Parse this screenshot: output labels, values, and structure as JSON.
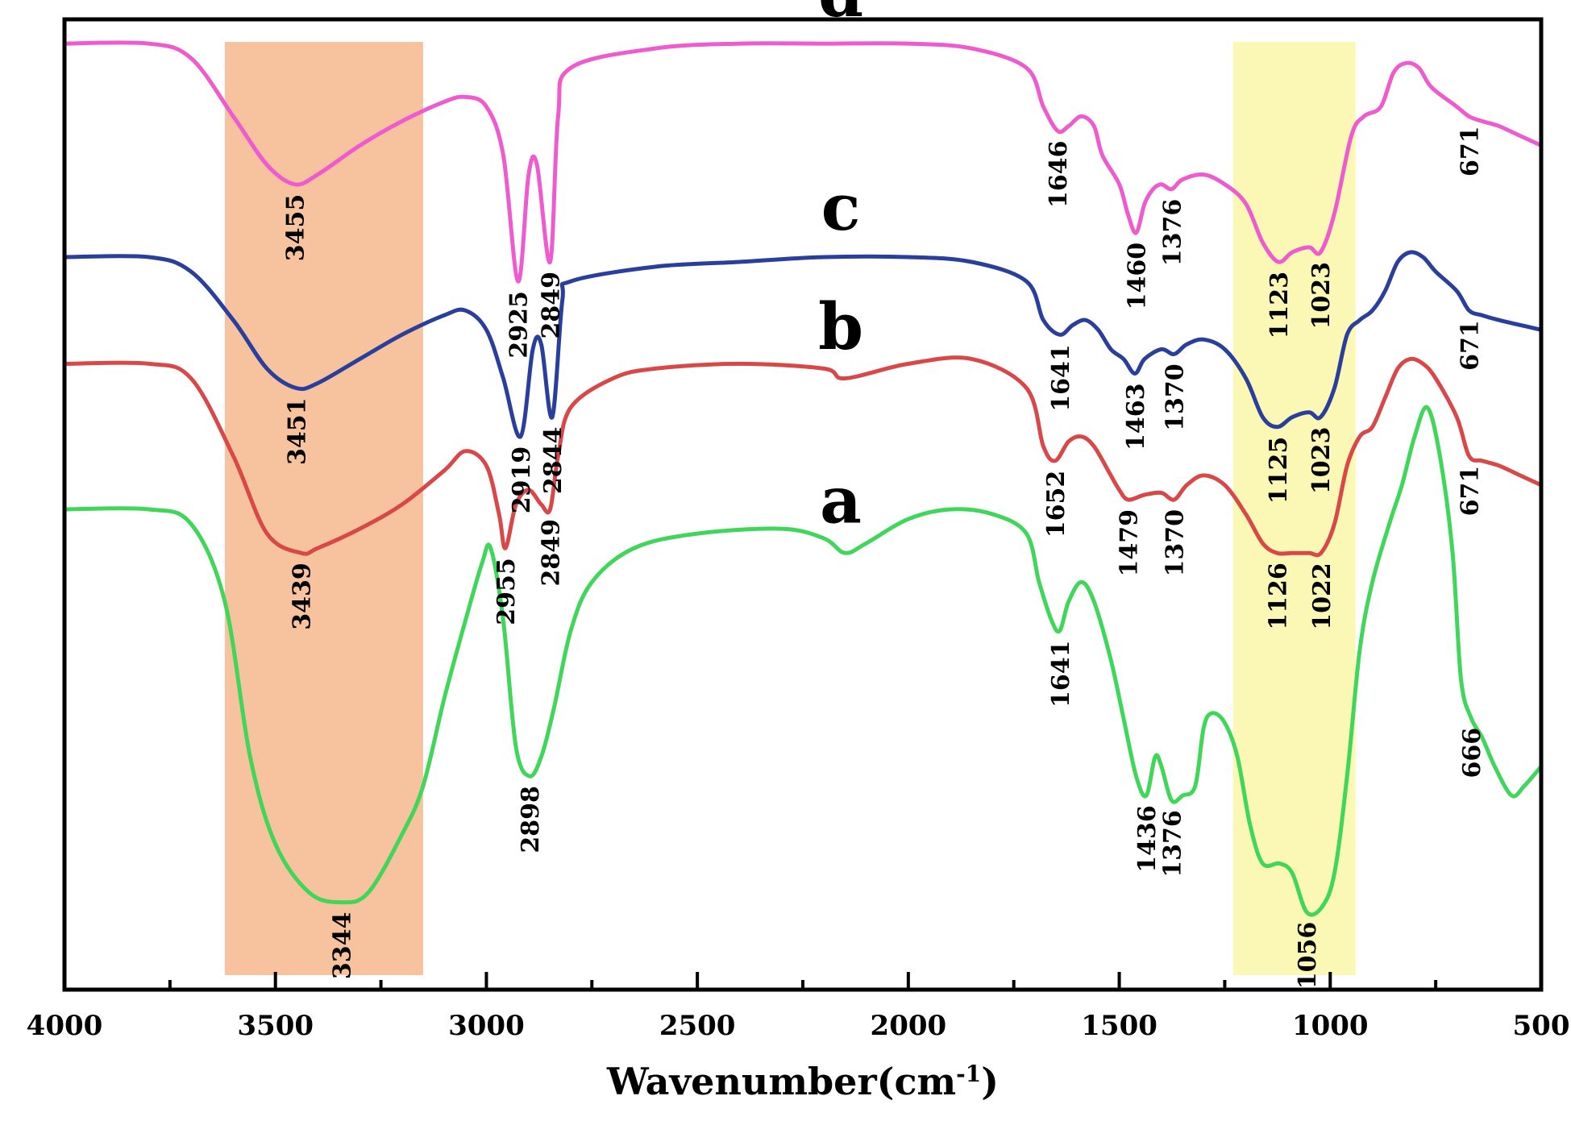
{
  "chart_data": {
    "type": "line",
    "title": "",
    "xlabel": "Wavenumber(cm-1)",
    "xlabel_main": "Wavenumber(cm",
    "xlabel_sup": "-1",
    "xlabel_close": ")",
    "ylabel": "",
    "xlim": [
      4000,
      500
    ],
    "ylim": [
      0,
      100
    ],
    "x_ticks": [
      {
        "value": 4000,
        "label": "4000"
      },
      {
        "value": 3500,
        "label": "3500"
      },
      {
        "value": 3000,
        "label": "3000"
      },
      {
        "value": 2500,
        "label": "2500"
      },
      {
        "value": 2000,
        "label": "2000"
      },
      {
        "value": 1500,
        "label": "1500"
      },
      {
        "value": 1000,
        "label": "1000"
      },
      {
        "value": 500,
        "label": "500"
      }
    ],
    "highlight_bands": [
      {
        "from": 3620,
        "to": 3150,
        "color": "#f7c29e"
      },
      {
        "from": 1230,
        "to": 940,
        "color": "#fbf7b4"
      }
    ],
    "series": [
      {
        "name": "d",
        "label": "d",
        "color": "#ee5bcf",
        "points": [
          [
            4000,
            97.5
          ],
          [
            3800,
            97.5
          ],
          [
            3700,
            96
          ],
          [
            3600,
            90
          ],
          [
            3520,
            85
          ],
          [
            3455,
            83
          ],
          [
            3400,
            84
          ],
          [
            3300,
            87
          ],
          [
            3200,
            89.5
          ],
          [
            3100,
            91.5
          ],
          [
            3050,
            92
          ],
          [
            3000,
            91
          ],
          [
            2960,
            86
          ],
          [
            2925,
            73
          ],
          [
            2900,
            84
          ],
          [
            2880,
            85
          ],
          [
            2849,
            75
          ],
          [
            2830,
            90
          ],
          [
            2800,
            95
          ],
          [
            2600,
            97
          ],
          [
            2400,
            97.5
          ],
          [
            2200,
            97.5
          ],
          [
            2000,
            97.5
          ],
          [
            1850,
            97
          ],
          [
            1720,
            95
          ],
          [
            1680,
            91
          ],
          [
            1646,
            88.5
          ],
          [
            1620,
            89
          ],
          [
            1590,
            90
          ],
          [
            1560,
            89
          ],
          [
            1540,
            86
          ],
          [
            1500,
            83
          ],
          [
            1480,
            80
          ],
          [
            1460,
            78
          ],
          [
            1440,
            81
          ],
          [
            1420,
            82.5
          ],
          [
            1400,
            83
          ],
          [
            1376,
            82.5
          ],
          [
            1350,
            83.5
          ],
          [
            1300,
            84
          ],
          [
            1250,
            83
          ],
          [
            1200,
            81
          ],
          [
            1160,
            77
          ],
          [
            1123,
            75
          ],
          [
            1090,
            76
          ],
          [
            1050,
            76.5
          ],
          [
            1023,
            76
          ],
          [
            990,
            80
          ],
          [
            950,
            88
          ],
          [
            920,
            90
          ],
          [
            880,
            91
          ],
          [
            850,
            94.5
          ],
          [
            820,
            95.5
          ],
          [
            790,
            95
          ],
          [
            760,
            93
          ],
          [
            700,
            91
          ],
          [
            671,
            90
          ],
          [
            640,
            89.5
          ],
          [
            600,
            89
          ],
          [
            550,
            88
          ],
          [
            500,
            87
          ]
        ],
        "peaks": [
          {
            "x": 3455,
            "label": "3455"
          },
          {
            "x": 2925,
            "label": "2925"
          },
          {
            "x": 2849,
            "label": "2849"
          },
          {
            "x": 1646,
            "label": "1646"
          },
          {
            "x": 1460,
            "label": "1460"
          },
          {
            "x": 1376,
            "label": "1376"
          },
          {
            "x": 1123,
            "label": "1123"
          },
          {
            "x": 1023,
            "label": "1023"
          },
          {
            "x": 671,
            "label": "671"
          }
        ]
      },
      {
        "name": "c",
        "label": "c",
        "color": "#2a3f9c",
        "points": [
          [
            4000,
            75.5
          ],
          [
            3800,
            75.5
          ],
          [
            3700,
            74
          ],
          [
            3600,
            69
          ],
          [
            3520,
            64
          ],
          [
            3451,
            62
          ],
          [
            3400,
            62.5
          ],
          [
            3300,
            65
          ],
          [
            3200,
            67.5
          ],
          [
            3100,
            69.5
          ],
          [
            3050,
            70
          ],
          [
            3000,
            68
          ],
          [
            2960,
            63
          ],
          [
            2919,
            57
          ],
          [
            2890,
            66
          ],
          [
            2870,
            66.5
          ],
          [
            2844,
            59
          ],
          [
            2820,
            71
          ],
          [
            2800,
            73
          ],
          [
            2600,
            74.5
          ],
          [
            2400,
            75
          ],
          [
            2200,
            75.5
          ],
          [
            2000,
            75.5
          ],
          [
            1850,
            75
          ],
          [
            1720,
            73
          ],
          [
            1680,
            69
          ],
          [
            1641,
            67.5
          ],
          [
            1610,
            68.5
          ],
          [
            1580,
            69
          ],
          [
            1550,
            68
          ],
          [
            1520,
            66
          ],
          [
            1490,
            65
          ],
          [
            1463,
            63.5
          ],
          [
            1440,
            65
          ],
          [
            1400,
            66
          ],
          [
            1370,
            65.5
          ],
          [
            1340,
            66.5
          ],
          [
            1300,
            67
          ],
          [
            1250,
            66
          ],
          [
            1200,
            63
          ],
          [
            1160,
            59
          ],
          [
            1125,
            58
          ],
          [
            1090,
            59
          ],
          [
            1050,
            59.5
          ],
          [
            1023,
            59
          ],
          [
            990,
            62
          ],
          [
            960,
            67.5
          ],
          [
            930,
            69
          ],
          [
            900,
            70
          ],
          [
            870,
            72
          ],
          [
            840,
            75
          ],
          [
            810,
            76
          ],
          [
            780,
            75.5
          ],
          [
            750,
            74
          ],
          [
            700,
            72
          ],
          [
            671,
            70
          ],
          [
            640,
            69.5
          ],
          [
            600,
            69
          ],
          [
            550,
            68.5
          ],
          [
            500,
            68
          ]
        ],
        "peaks": [
          {
            "x": 3451,
            "label": "3451"
          },
          {
            "x": 2919,
            "label": "2919"
          },
          {
            "x": 2844,
            "label": "2844"
          },
          {
            "x": 1641,
            "label": "1641"
          },
          {
            "x": 1463,
            "label": "1463"
          },
          {
            "x": 1370,
            "label": "1370"
          },
          {
            "x": 1125,
            "label": "1125"
          },
          {
            "x": 1023,
            "label": "1023"
          },
          {
            "x": 671,
            "label": "671"
          }
        ]
      },
      {
        "name": "b",
        "label": "b",
        "color": "#d84848",
        "points": [
          [
            4000,
            64.5
          ],
          [
            3800,
            64.5
          ],
          [
            3700,
            63
          ],
          [
            3600,
            55
          ],
          [
            3520,
            47
          ],
          [
            3439,
            45
          ],
          [
            3400,
            45.5
          ],
          [
            3300,
            47.5
          ],
          [
            3200,
            50
          ],
          [
            3100,
            53.5
          ],
          [
            3050,
            55.5
          ],
          [
            3000,
            54
          ],
          [
            2970,
            49
          ],
          [
            2955,
            45.5
          ],
          [
            2930,
            50
          ],
          [
            2900,
            51.5
          ],
          [
            2870,
            50
          ],
          [
            2849,
            49.5
          ],
          [
            2830,
            55
          ],
          [
            2800,
            60
          ],
          [
            2700,
            63
          ],
          [
            2600,
            64
          ],
          [
            2400,
            64.5
          ],
          [
            2200,
            64
          ],
          [
            2150,
            63
          ],
          [
            2000,
            64.5
          ],
          [
            1850,
            65
          ],
          [
            1720,
            62
          ],
          [
            1680,
            56
          ],
          [
            1652,
            54.5
          ],
          [
            1620,
            56.5
          ],
          [
            1590,
            57
          ],
          [
            1560,
            56
          ],
          [
            1520,
            53
          ],
          [
            1500,
            51.5
          ],
          [
            1479,
            50.5
          ],
          [
            1440,
            51
          ],
          [
            1400,
            51.2
          ],
          [
            1370,
            50.5
          ],
          [
            1340,
            52
          ],
          [
            1300,
            53
          ],
          [
            1250,
            52
          ],
          [
            1200,
            49
          ],
          [
            1160,
            46
          ],
          [
            1126,
            45
          ],
          [
            1090,
            45
          ],
          [
            1050,
            45
          ],
          [
            1022,
            45
          ],
          [
            990,
            48
          ],
          [
            960,
            54
          ],
          [
            930,
            57
          ],
          [
            900,
            58
          ],
          [
            870,
            61
          ],
          [
            840,
            64
          ],
          [
            810,
            65
          ],
          [
            780,
            64.5
          ],
          [
            750,
            63
          ],
          [
            700,
            59
          ],
          [
            671,
            55
          ],
          [
            640,
            54.5
          ],
          [
            600,
            54
          ],
          [
            550,
            53
          ],
          [
            500,
            52
          ]
        ],
        "peaks": [
          {
            "x": 3439,
            "label": "3439"
          },
          {
            "x": 2955,
            "label": "2955"
          },
          {
            "x": 2849,
            "label": "2849"
          },
          {
            "x": 1652,
            "label": "1652"
          },
          {
            "x": 1479,
            "label": "1479"
          },
          {
            "x": 1370,
            "label": "1370"
          },
          {
            "x": 1126,
            "label": "1126"
          },
          {
            "x": 1022,
            "label": "1022"
          },
          {
            "x": 671,
            "label": "671"
          }
        ]
      },
      {
        "name": "a",
        "label": "a",
        "color": "#3fd65a",
        "points": [
          [
            4000,
            49.5
          ],
          [
            3800,
            49.5
          ],
          [
            3700,
            48
          ],
          [
            3620,
            40
          ],
          [
            3560,
            24
          ],
          [
            3500,
            15
          ],
          [
            3420,
            10
          ],
          [
            3344,
            9
          ],
          [
            3280,
            10
          ],
          [
            3200,
            16
          ],
          [
            3150,
            21
          ],
          [
            3100,
            30
          ],
          [
            3050,
            38
          ],
          [
            3010,
            44
          ],
          [
            2990,
            45.5
          ],
          [
            2960,
            38
          ],
          [
            2930,
            25
          ],
          [
            2898,
            22
          ],
          [
            2870,
            24
          ],
          [
            2840,
            29
          ],
          [
            2800,
            37
          ],
          [
            2750,
            42
          ],
          [
            2650,
            45.5
          ],
          [
            2500,
            47
          ],
          [
            2300,
            47.5
          ],
          [
            2200,
            46.5
          ],
          [
            2150,
            45
          ],
          [
            2100,
            46
          ],
          [
            2000,
            48.5
          ],
          [
            1900,
            49.5
          ],
          [
            1800,
            49
          ],
          [
            1720,
            47
          ],
          [
            1690,
            42
          ],
          [
            1660,
            38
          ],
          [
            1641,
            37
          ],
          [
            1620,
            40
          ],
          [
            1590,
            42
          ],
          [
            1560,
            40
          ],
          [
            1520,
            34
          ],
          [
            1490,
            28
          ],
          [
            1460,
            22
          ],
          [
            1436,
            20
          ],
          [
            1415,
            24
          ],
          [
            1400,
            23
          ],
          [
            1376,
            19.5
          ],
          [
            1350,
            20
          ],
          [
            1320,
            21
          ],
          [
            1300,
            27
          ],
          [
            1280,
            28.5
          ],
          [
            1250,
            27.5
          ],
          [
            1220,
            24
          ],
          [
            1190,
            17
          ],
          [
            1160,
            13
          ],
          [
            1120,
            13
          ],
          [
            1090,
            12
          ],
          [
            1056,
            8
          ],
          [
            1020,
            8.5
          ],
          [
            990,
            12
          ],
          [
            960,
            22
          ],
          [
            930,
            35
          ],
          [
            900,
            42
          ],
          [
            860,
            48
          ],
          [
            830,
            52
          ],
          [
            800,
            57
          ],
          [
            770,
            60
          ],
          [
            740,
            55
          ],
          [
            710,
            45
          ],
          [
            690,
            32
          ],
          [
            666,
            28
          ],
          [
            640,
            26
          ],
          [
            610,
            23
          ],
          [
            570,
            20
          ],
          [
            540,
            21
          ],
          [
            500,
            23
          ]
        ],
        "peaks": [
          {
            "x": 3344,
            "label": "3344"
          },
          {
            "x": 2898,
            "label": "2898"
          },
          {
            "x": 1641,
            "label": "1641"
          },
          {
            "x": 1436,
            "label": "1436"
          },
          {
            "x": 1376,
            "label": "1376"
          },
          {
            "x": 1056,
            "label": "1056"
          },
          {
            "x": 666,
            "label": "666"
          }
        ]
      }
    ]
  }
}
